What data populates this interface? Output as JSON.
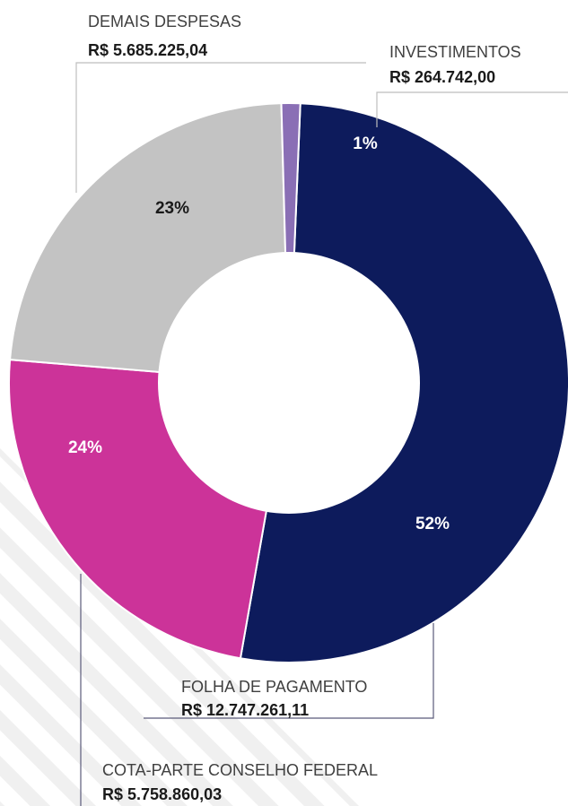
{
  "chart_data": {
    "type": "pie",
    "style": "donut",
    "legend": "callout labels",
    "slices": [
      {
        "label": "FOLHA DE PAGAMENTO",
        "value_text": "R$ 12.747.261,11",
        "value": 12747261.11,
        "percent_label": "52%",
        "color": "#0d1b5c",
        "label_color": "#ffffff"
      },
      {
        "label": "COTA-PARTE CONSELHO FEDERAL",
        "value_text": "R$ 5.758.860,03",
        "value": 5758860.03,
        "percent_label": "24%",
        "color": "#cc3399",
        "label_color": "#ffffff"
      },
      {
        "label": "DEMAIS DESPESAS",
        "value_text": "R$ 5.685.225,04",
        "value": 5685225.04,
        "percent_label": "23%",
        "color": "#c3c3c3",
        "label_color": "#1a1a1a"
      },
      {
        "label": "INVESTIMENTOS",
        "value_text": "R$ 264.742,00",
        "value": 264742.0,
        "percent_label": "1%",
        "color": "#8a6fb5",
        "label_color": "#ffffff"
      }
    ]
  }
}
